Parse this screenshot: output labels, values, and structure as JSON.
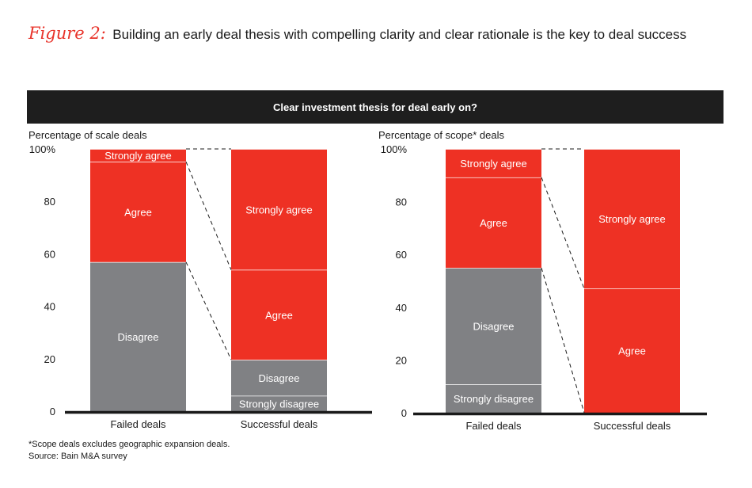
{
  "figure": {
    "label": "Figure 2:",
    "title": "Building an early deal thesis with compelling clarity and clear rationale is the key to deal success"
  },
  "banner": "Clear investment thesis for deal early on?",
  "colors": {
    "red": "#ee3124",
    "gray": "#808184",
    "axis": "#1a1a1a"
  },
  "chart_data": [
    {
      "type": "bar",
      "stacked": true,
      "title": "Clear investment thesis for deal early on?",
      "ylabel": "Percentage of scale deals",
      "ylim": [
        0,
        100
      ],
      "yticks": [
        "0",
        "20",
        "40",
        "60",
        "80",
        "100%"
      ],
      "categories": [
        "Failed deals",
        "Successful deals"
      ],
      "series": [
        {
          "name": "Strongly disagree",
          "color": "gray",
          "values": [
            0,
            6
          ]
        },
        {
          "name": "Disagree",
          "color": "gray",
          "values": [
            58,
            14
          ]
        },
        {
          "name": "Agree",
          "color": "red",
          "values": [
            39,
            35
          ]
        },
        {
          "name": "Strongly agree",
          "color": "red",
          "values": [
            5,
            47
          ]
        }
      ]
    },
    {
      "type": "bar",
      "stacked": true,
      "title": "Clear investment thesis for deal early on?",
      "ylabel": "Percentage of scope* deals",
      "ylim": [
        0,
        100
      ],
      "yticks": [
        "0",
        "20",
        "40",
        "60",
        "80",
        "100%"
      ],
      "categories": [
        "Failed deals",
        "Successful deals"
      ],
      "series": [
        {
          "name": "Strongly disagree",
          "color": "gray",
          "values": [
            11,
            0
          ]
        },
        {
          "name": "Disagree",
          "color": "gray",
          "values": [
            45,
            0
          ]
        },
        {
          "name": "Agree",
          "color": "red",
          "values": [
            35,
            48
          ]
        },
        {
          "name": "Strongly agree",
          "color": "red",
          "values": [
            11,
            54
          ]
        }
      ]
    }
  ],
  "footnotes": {
    "note": "*Scope deals excludes geographic expansion deals.",
    "source": "Source: Bain M&A survey"
  }
}
